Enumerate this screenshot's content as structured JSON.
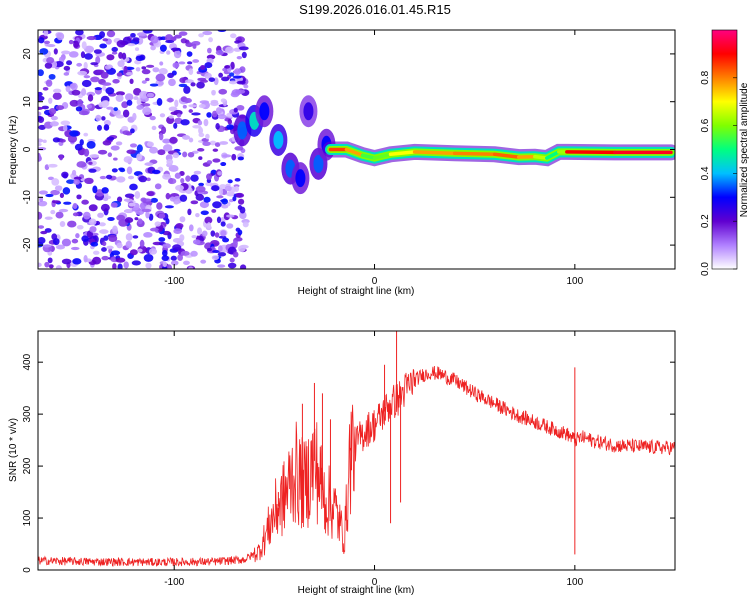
{
  "title": "S199.2026.016.01.45.R15",
  "chart_data": [
    {
      "type": "heatmap",
      "name": "spectrogram",
      "xlabel": "Height of straight line (km)",
      "ylabel": "Frequency (Hz)",
      "xlim": [
        -168,
        150
      ],
      "ylim": [
        -25,
        25
      ],
      "xticks": [
        -100,
        0,
        100
      ],
      "yticks": [
        -20,
        -10,
        0,
        10,
        20
      ],
      "xtick_labels": [
        "-100",
        "0",
        "100"
      ],
      "ytick_labels": [
        "-20",
        "-10",
        "0",
        "10",
        "20"
      ],
      "colorbar": {
        "label": "Normalized spectral amplitude",
        "range": [
          0,
          1
        ],
        "ticks": [
          0.0,
          0.2,
          0.4,
          0.6,
          0.8
        ],
        "tick_labels": [
          "0.0",
          "0.2",
          "0.4",
          "0.6",
          "0.8"
        ],
        "colormap": [
          "#ffffff",
          "#b080ff",
          "#6000d0",
          "#0000ff",
          "#00c0ff",
          "#00ff80",
          "#80ff00",
          "#ffff00",
          "#ff8000",
          "#ff0000",
          "#ff0080"
        ]
      },
      "noise_region": {
        "x_range": [
          -168,
          -68
        ],
        "amplitude": 0.15
      },
      "scattered_segments": [
        {
          "x": -66,
          "f": 4,
          "amp": 0.35
        },
        {
          "x": -60,
          "f": 6,
          "amp": 0.45
        },
        {
          "x": -55,
          "f": 8,
          "amp": 0.3
        },
        {
          "x": -48,
          "f": 2,
          "amp": 0.4
        },
        {
          "x": -42,
          "f": -4,
          "amp": 0.35
        },
        {
          "x": -37,
          "f": -6,
          "amp": 0.3
        },
        {
          "x": -33,
          "f": 8,
          "amp": 0.25
        },
        {
          "x": -28,
          "f": -3,
          "amp": 0.35
        },
        {
          "x": -24,
          "f": 1,
          "amp": 0.3
        }
      ],
      "carrier_line": [
        {
          "x": -22,
          "f": 0.0,
          "amp": 0.75
        },
        {
          "x": -14,
          "f": 0.0,
          "amp": 0.95
        },
        {
          "x": -6,
          "f": -1.2,
          "amp": 0.6
        },
        {
          "x": 0,
          "f": -1.8,
          "amp": 0.5
        },
        {
          "x": 8,
          "f": -1.0,
          "amp": 0.65
        },
        {
          "x": 20,
          "f": -0.5,
          "amp": 0.75
        },
        {
          "x": 40,
          "f": -0.8,
          "amp": 0.8
        },
        {
          "x": 60,
          "f": -1.0,
          "amp": 0.8
        },
        {
          "x": 72,
          "f": -1.6,
          "amp": 0.85
        },
        {
          "x": 80,
          "f": -1.5,
          "amp": 0.7
        },
        {
          "x": 86,
          "f": -1.8,
          "amp": 0.6
        },
        {
          "x": 92,
          "f": -0.5,
          "amp": 0.4
        },
        {
          "x": 96,
          "f": -0.5,
          "amp": 0.85
        },
        {
          "x": 120,
          "f": -0.6,
          "amp": 0.95
        },
        {
          "x": 148,
          "f": -0.6,
          "amp": 0.9
        }
      ]
    },
    {
      "type": "line",
      "name": "snr",
      "xlabel": "Height of straight line (km)",
      "ylabel": "SNR (10 * v/v)",
      "xlim": [
        -168,
        150
      ],
      "ylim": [
        0,
        460
      ],
      "xticks": [
        -100,
        0,
        100
      ],
      "yticks": [
        0,
        100,
        200,
        300,
        400
      ],
      "xtick_labels": [
        "-100",
        "0",
        "100"
      ],
      "ytick_labels": [
        "0",
        "100",
        "200",
        "300",
        "400"
      ],
      "color": "#ee2222",
      "series": [
        {
          "name": "SNR",
          "x": [
            -168,
            -140,
            -110,
            -80,
            -65,
            -58,
            -55,
            -50,
            -45,
            -40,
            -35,
            -30,
            -25,
            -20,
            -15,
            -12,
            -8,
            -4,
            0,
            4,
            8,
            12,
            16,
            20,
            24,
            28,
            32,
            40,
            50,
            60,
            70,
            80,
            90,
            96,
            100,
            104,
            110,
            120,
            130,
            140,
            150
          ],
          "y": [
            18,
            16,
            15,
            16,
            20,
            35,
            60,
            110,
            140,
            190,
            160,
            210,
            140,
            120,
            60,
            230,
            250,
            270,
            280,
            300,
            320,
            330,
            350,
            365,
            375,
            380,
            378,
            365,
            340,
            320,
            300,
            285,
            270,
            262,
            250,
            255,
            248,
            240,
            238,
            236,
            235
          ]
        }
      ],
      "spikes": [
        {
          "x": -48,
          "y": 150
        },
        {
          "x": -36,
          "y": 320
        },
        {
          "x": -30,
          "y": 360
        },
        {
          "x": -26,
          "y": 340
        },
        {
          "x": -22,
          "y": 290
        },
        {
          "x": -12,
          "y": 235
        },
        {
          "x": 5,
          "y": 395
        },
        {
          "x": 8,
          "y": 90
        },
        {
          "x": 11,
          "y": 465
        },
        {
          "x": 13,
          "y": 130
        },
        {
          "x": 100,
          "y": 30
        },
        {
          "x": 100,
          "y": 390
        }
      ]
    }
  ]
}
